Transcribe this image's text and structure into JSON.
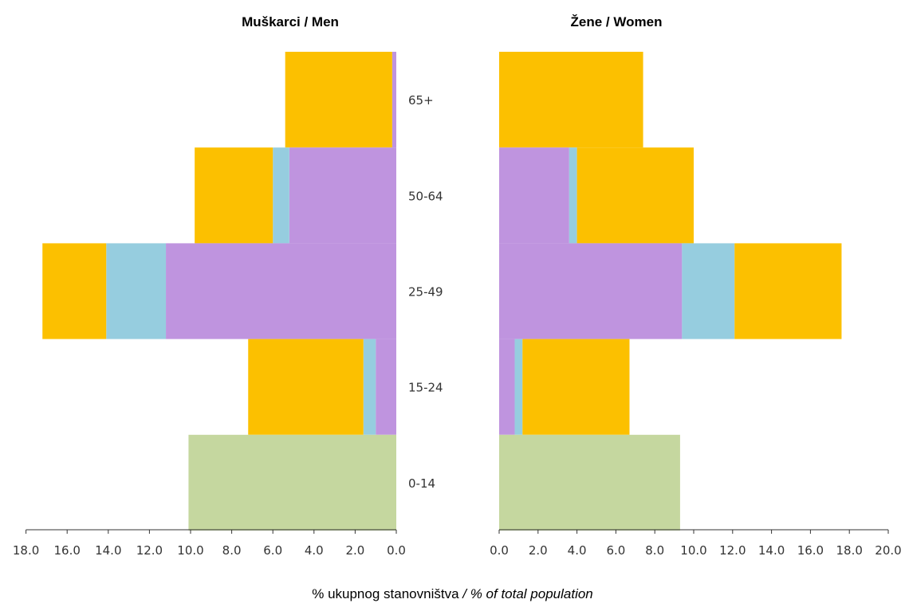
{
  "chart_data": {
    "type": "bar",
    "orientation": "horizontal",
    "stacked": true,
    "panels": [
      {
        "name": "Muškarci / Men",
        "axis_direction": "reversed",
        "xlim": [
          0,
          18
        ],
        "ticks": [
          "0.0",
          "2.0",
          "4.0",
          "6.0",
          "8.0",
          "10.0",
          "12.0",
          "14.0",
          "16.0",
          "18.0"
        ]
      },
      {
        "name": "Žene / Women",
        "axis_direction": "normal",
        "xlim": [
          0,
          20
        ],
        "ticks": [
          "0.0",
          "2.0",
          "4.0",
          "6.0",
          "8.0",
          "10.0",
          "12.0",
          "14.0",
          "16.0",
          "18.0",
          "20.0"
        ]
      }
    ],
    "categories": [
      "65+",
      "50-64",
      "25-49",
      "15-24",
      "0-14"
    ],
    "series": [
      {
        "key": "s1",
        "color": "#bf94df",
        "men": [
          0.2,
          5.2,
          11.2,
          1.0,
          0
        ],
        "women": [
          0,
          3.6,
          9.4,
          0.8,
          0
        ]
      },
      {
        "key": "s2",
        "color": "#96cddf",
        "men": [
          0,
          0.8,
          2.9,
          0.6,
          0
        ],
        "women": [
          0,
          0.4,
          2.7,
          0.4,
          0
        ]
      },
      {
        "key": "s3",
        "color": "#fcc000",
        "men": [
          5.2,
          3.8,
          3.1,
          5.6,
          0
        ],
        "women": [
          7.4,
          6.0,
          5.5,
          5.5,
          0
        ]
      },
      {
        "key": "s4",
        "color": "#c5d79f",
        "men": [
          0,
          0,
          0,
          0,
          10.1
        ],
        "women": [
          0,
          0,
          0,
          0,
          9.3
        ]
      }
    ],
    "xlabel_main": "% ukupnog stanovništva",
    "xlabel_italic": " / % of total population"
  }
}
